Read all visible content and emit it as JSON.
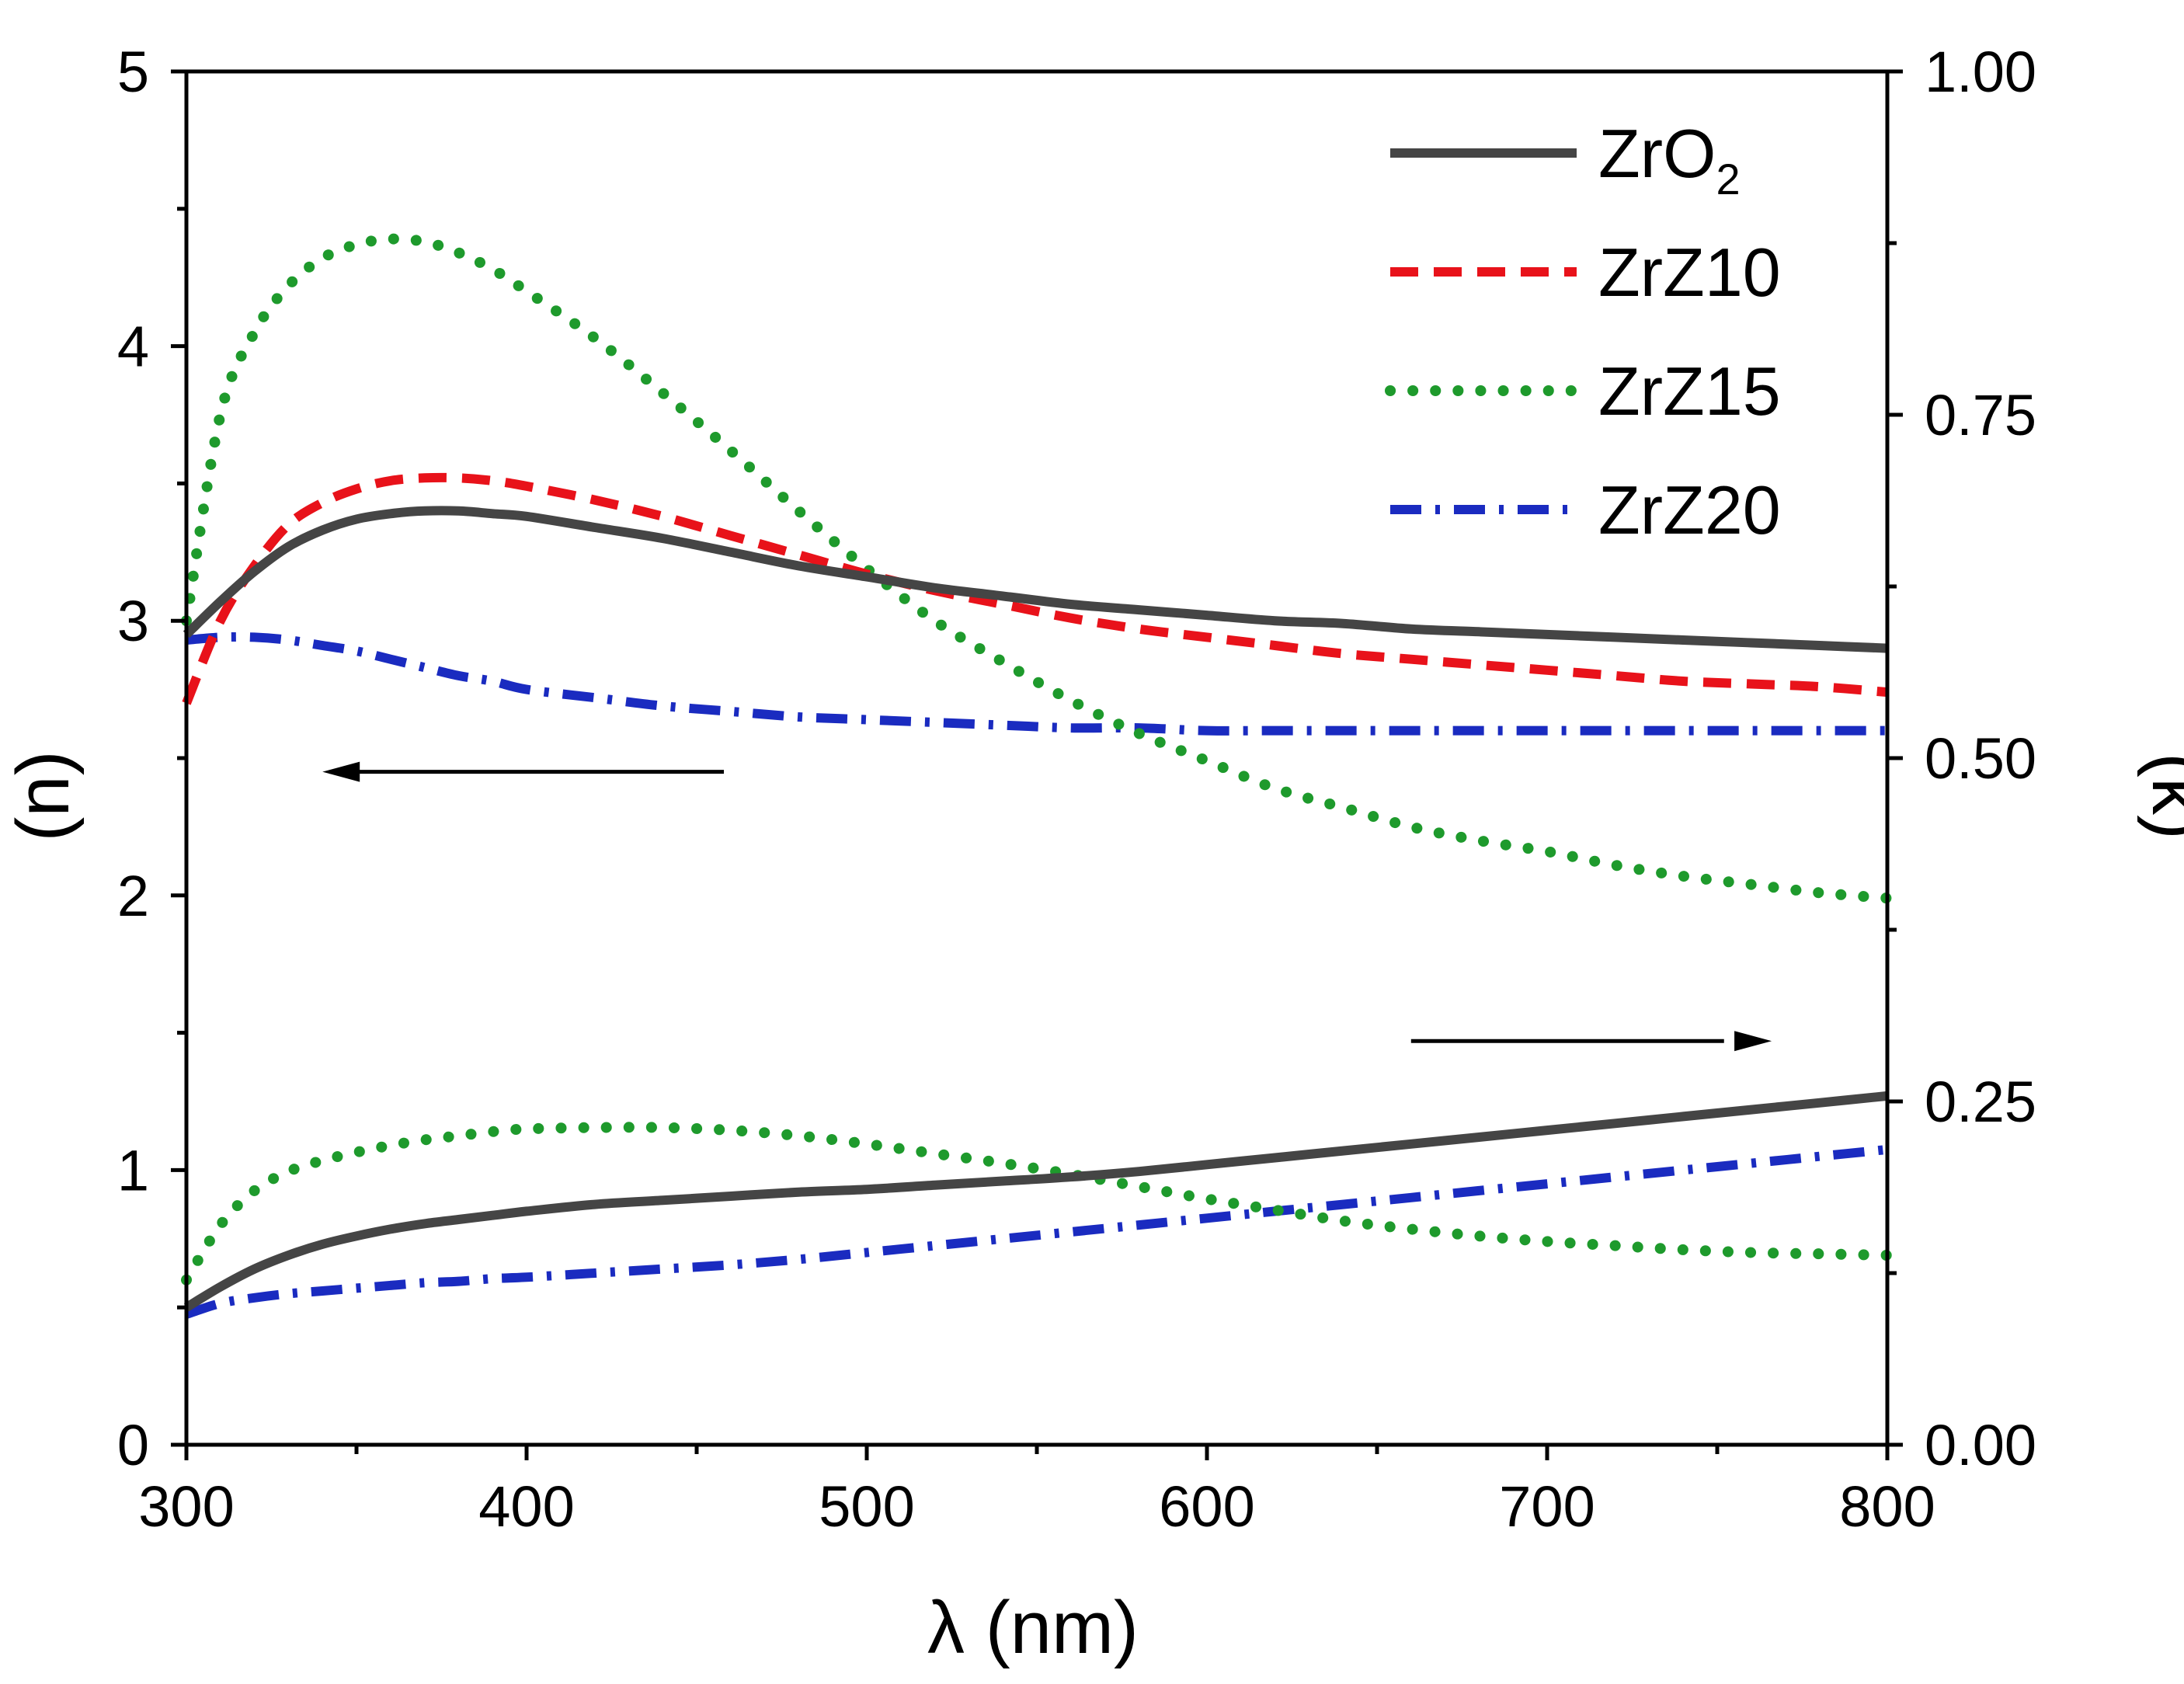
{
  "chart_data": {
    "type": "line",
    "title": "",
    "xlabel": "λ (nm)",
    "ylabel_left": "(n)",
    "ylabel_right": "(k)",
    "xlim": [
      300,
      800
    ],
    "ylim_left": [
      0,
      5
    ],
    "ylim_right": [
      0,
      1
    ],
    "grid": false,
    "legend_position": "top-right",
    "x_ticks": [
      300,
      400,
      500,
      600,
      700,
      800
    ],
    "x_tick_labels": [
      "300",
      "400",
      "500",
      "600",
      "700",
      "800"
    ],
    "y_left_ticks": [
      0,
      1,
      2,
      3,
      4,
      5
    ],
    "y_left_tick_labels": [
      "0",
      "1",
      "2",
      "3",
      "4",
      "5"
    ],
    "y_right_ticks": [
      0,
      0.25,
      0.5,
      0.75,
      1
    ],
    "y_right_tick_labels": [
      "0.00",
      "0.25",
      "0.50",
      "0.75",
      "1.00"
    ],
    "x": [
      300,
      310,
      320,
      330,
      340,
      350,
      360,
      370,
      380,
      390,
      400,
      420,
      440,
      460,
      480,
      500,
      520,
      540,
      560,
      580,
      600,
      620,
      640,
      660,
      680,
      700,
      720,
      740,
      760,
      780,
      800
    ],
    "series": [
      {
        "name": "ZrO2",
        "label": "ZrO",
        "label_sub": "2",
        "color": "#454545",
        "style": "solid",
        "n": [
          2.95,
          3.07,
          3.18,
          3.27,
          3.33,
          3.37,
          3.39,
          3.4,
          3.4,
          3.39,
          3.38,
          3.34,
          3.3,
          3.25,
          3.2,
          3.16,
          3.12,
          3.09,
          3.06,
          3.04,
          3.02,
          3.0,
          2.99,
          2.97,
          2.96,
          2.95,
          2.94,
          2.93,
          2.92,
          2.91,
          2.9
        ],
        "k": [
          0.1,
          0.115,
          0.128,
          0.138,
          0.146,
          0.152,
          0.157,
          0.161,
          0.164,
          0.167,
          0.17,
          0.175,
          0.178,
          0.181,
          0.184,
          0.186,
          0.189,
          0.192,
          0.195,
          0.199,
          0.204,
          0.209,
          0.214,
          0.219,
          0.224,
          0.229,
          0.234,
          0.239,
          0.244,
          0.249,
          0.254
        ]
      },
      {
        "name": "ZrZ10",
        "label": "ZrZ10",
        "label_sub": "",
        "color": "#e8121a",
        "style": "dash",
        "n": [
          2.7,
          3.0,
          3.2,
          3.35,
          3.43,
          3.48,
          3.51,
          3.52,
          3.52,
          3.51,
          3.49,
          3.44,
          3.38,
          3.31,
          3.24,
          3.17,
          3.11,
          3.06,
          3.01,
          2.97,
          2.94,
          2.91,
          2.88,
          2.86,
          2.84,
          2.82,
          2.8,
          2.78,
          2.77,
          2.76,
          2.74
        ]
      },
      {
        "name": "ZrZ15",
        "label": "ZrZ15",
        "label_sub": "",
        "color": "#1e9a2c",
        "style": "dot",
        "n": [
          3.0,
          3.75,
          4.05,
          4.22,
          4.32,
          4.37,
          4.39,
          4.38,
          4.34,
          4.28,
          4.2,
          4.03,
          3.83,
          3.62,
          3.4,
          3.19,
          3.0,
          2.85,
          2.71,
          2.59,
          2.49,
          2.39,
          2.32,
          2.25,
          2.2,
          2.16,
          2.11,
          2.07,
          2.04,
          2.01,
          1.99
        ],
        "k": [
          0.12,
          0.16,
          0.185,
          0.199,
          0.207,
          0.213,
          0.218,
          0.222,
          0.225,
          0.228,
          0.23,
          0.231,
          0.231,
          0.229,
          0.225,
          0.219,
          0.212,
          0.205,
          0.197,
          0.188,
          0.179,
          0.171,
          0.163,
          0.157,
          0.152,
          0.148,
          0.145,
          0.142,
          0.14,
          0.139,
          0.138
        ]
      },
      {
        "name": "ZrZ20",
        "label": "ZrZ20",
        "label_sub": "",
        "color": "#1a2bc0",
        "style": "dashdot",
        "n": [
          2.93,
          2.94,
          2.94,
          2.93,
          2.91,
          2.89,
          2.86,
          2.83,
          2.8,
          2.78,
          2.75,
          2.72,
          2.69,
          2.67,
          2.65,
          2.64,
          2.63,
          2.62,
          2.61,
          2.61,
          2.6,
          2.6,
          2.6,
          2.6,
          2.6,
          2.6,
          2.6,
          2.6,
          2.6,
          2.6,
          2.6
        ],
        "k": [
          0.095,
          0.103,
          0.107,
          0.11,
          0.112,
          0.114,
          0.116,
          0.118,
          0.119,
          0.121,
          0.122,
          0.125,
          0.128,
          0.131,
          0.135,
          0.14,
          0.145,
          0.15,
          0.155,
          0.16,
          0.165,
          0.17,
          0.175,
          0.18,
          0.185,
          0.19,
          0.195,
          0.2,
          0.205,
          0.21,
          0.215
        ]
      }
    ],
    "annotations": [
      {
        "name": "left-axis-arrow",
        "direction": "left",
        "axis": "n"
      },
      {
        "name": "right-axis-arrow",
        "direction": "right",
        "axis": "k"
      }
    ]
  }
}
